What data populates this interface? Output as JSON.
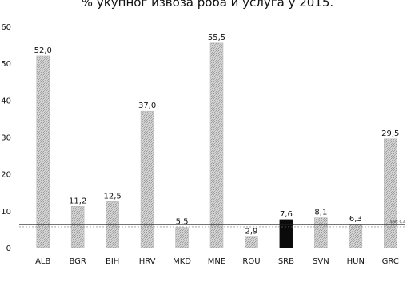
{
  "chart_data": {
    "type": "bar",
    "title": "% укупног извоза роба и услуга у 2015.",
    "categories": [
      "ALB",
      "BGR",
      "BIH",
      "HRV",
      "MKD",
      "MNE",
      "ROU",
      "SRB",
      "SVN",
      "HUN",
      "GRC"
    ],
    "values": [
      52.0,
      11.2,
      12.5,
      37.0,
      5.5,
      55.5,
      2.9,
      7.6,
      8.1,
      6.3,
      29.5
    ],
    "value_labels": [
      "52,0",
      "11,2",
      "12,5",
      "37,0",
      "5,5",
      "55,5",
      "2,9",
      "7,6",
      "8,1",
      "6,3",
      "29,5"
    ],
    "highlight_category": "SRB",
    "reference_line": {
      "value": 6.3,
      "label": "Svet: 6,3"
    },
    "yticks": [
      "0",
      "10",
      "20",
      "30",
      "40",
      "50",
      "60"
    ],
    "ylim": [
      0,
      60
    ],
    "xlabel": "",
    "ylabel": "",
    "grid": false,
    "colors": {
      "bar": "#c4c4c4",
      "bar_highlight": "#0a0a0a",
      "reference_line": "#222222"
    }
  }
}
